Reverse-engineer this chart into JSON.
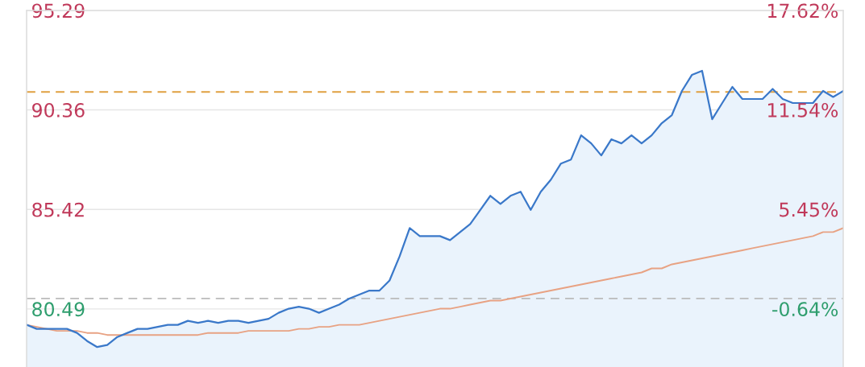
{
  "chart_data": {
    "type": "area",
    "categories": [
      null,
      null,
      null,
      null,
      null,
      null,
      null,
      null,
      null,
      null,
      null,
      null,
      null,
      null,
      null,
      null,
      null,
      null,
      null,
      null,
      null,
      null,
      null,
      null,
      null,
      null,
      null,
      null,
      null,
      null,
      null,
      null,
      null,
      null,
      null,
      null,
      null,
      null,
      null,
      null,
      null,
      null,
      null,
      null,
      null,
      null,
      null,
      null,
      null,
      null,
      null,
      null,
      null,
      null,
      null,
      null,
      null,
      null,
      null,
      null,
      null,
      null,
      null,
      null,
      null,
      null,
      null,
      null,
      null,
      null,
      null,
      null,
      null,
      null,
      null,
      null,
      null,
      null,
      null,
      null,
      null,
      null
    ],
    "series": [
      {
        "color": "#3a78c9",
        "values": [
          79.7,
          79.5,
          79.5,
          79.5,
          79.5,
          79.3,
          78.9,
          78.6,
          78.7,
          79.1,
          79.3,
          79.5,
          79.5,
          79.6,
          79.7,
          79.7,
          79.9,
          79.8,
          79.9,
          79.8,
          79.9,
          79.9,
          79.8,
          79.9,
          80.0,
          80.3,
          80.5,
          80.6,
          80.5,
          80.3,
          80.5,
          80.7,
          81.0,
          81.2,
          81.4,
          81.4,
          81.9,
          83.1,
          84.5,
          84.1,
          84.1,
          84.1,
          83.9,
          84.3,
          84.7,
          85.4,
          86.1,
          85.7,
          86.1,
          86.3,
          85.4,
          86.3,
          86.9,
          87.7,
          87.9,
          89.1,
          88.7,
          88.1,
          88.9,
          88.7,
          89.1,
          88.7,
          89.1,
          89.7,
          90.1,
          91.3,
          92.1,
          92.3,
          89.9,
          90.7,
          91.5,
          90.9,
          90.9,
          90.9,
          91.4,
          90.9,
          90.7,
          90.7,
          90.7,
          91.3,
          91.0,
          91.3
        ]
      },
      {
        "type": "line",
        "color": "#e8a283",
        "values": [
          79.7,
          79.6,
          79.5,
          79.4,
          79.4,
          79.4,
          79.3,
          79.3,
          79.2,
          79.2,
          79.2,
          79.2,
          79.2,
          79.2,
          79.2,
          79.2,
          79.2,
          79.2,
          79.3,
          79.3,
          79.3,
          79.3,
          79.4,
          79.4,
          79.4,
          79.4,
          79.4,
          79.5,
          79.5,
          79.6,
          79.6,
          79.7,
          79.7,
          79.7,
          79.8,
          79.9,
          80.0,
          80.1,
          80.2,
          80.3,
          80.4,
          80.5,
          80.5,
          80.6,
          80.7,
          80.8,
          80.9,
          80.9,
          81.0,
          81.1,
          81.2,
          81.3,
          81.4,
          81.5,
          81.6,
          81.7,
          81.8,
          81.9,
          82.0,
          82.1,
          82.2,
          82.3,
          82.5,
          82.5,
          82.7,
          82.8,
          82.9,
          83.0,
          83.1,
          83.2,
          83.3,
          83.4,
          83.5,
          83.6,
          83.7,
          83.8,
          83.9,
          84.0,
          84.1,
          84.3,
          84.3,
          84.5
        ]
      }
    ],
    "ylim": [
      77.61,
      95.29
    ],
    "yticks": [
      95.29,
      90.36,
      85.42,
      80.49
    ],
    "y2lim": [
      -4.2,
      17.62
    ],
    "y2ticks": [
      {
        "value": 17.62,
        "label": "17.62%"
      },
      {
        "value": 11.54,
        "label": "11.54%"
      },
      {
        "value": 5.45,
        "label": "5.45%"
      },
      {
        "value": -0.64,
        "label": "-0.64%"
      }
    ],
    "ref_lines": [
      {
        "axis": "y",
        "value": 81.01,
        "color": "#bbbbbb",
        "line_style": "dashed"
      },
      {
        "axis": "y",
        "value": 91.25,
        "color": "#e0a040",
        "line_style": "dashed"
      }
    ],
    "grid": "y",
    "legend": false
  }
}
